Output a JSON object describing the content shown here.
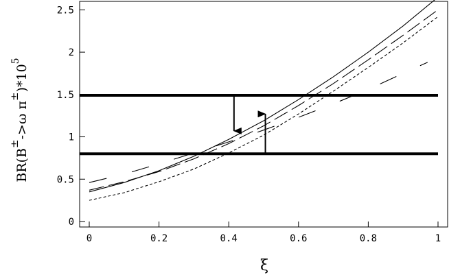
{
  "chart_data": {
    "type": "line",
    "title": "",
    "xlabel": "ξ",
    "ylabel": {
      "prefix": "BR(B",
      "pm1": "±",
      "middle": "->ω π",
      "pm2": "±",
      "suffix": ")*10",
      "exponent": "5"
    },
    "xlim": [
      0,
      1
    ],
    "ylim": [
      0,
      2.6
    ],
    "x_ticks": [
      0,
      0.2,
      0.4,
      0.6,
      0.8,
      1
    ],
    "x_tick_labels": [
      "0",
      "0.2",
      "0.4",
      "0.6",
      "0.8",
      "1"
    ],
    "y_ticks": [
      0,
      0.5,
      1,
      1.5,
      2,
      2.5
    ],
    "y_tick_labels": [
      "0",
      "0.5",
      "1",
      "1.5",
      "2",
      "2.5"
    ],
    "grid": false,
    "legend": "none",
    "series": [
      {
        "style": "solid",
        "x": [
          0,
          0.1,
          0.2,
          0.3,
          0.4,
          0.5,
          0.6,
          0.7,
          0.8,
          0.9,
          1.0
        ],
        "y": [
          0.35,
          0.46,
          0.6,
          0.77,
          0.97,
          1.19,
          1.44,
          1.71,
          2.0,
          2.31,
          2.65
        ]
      },
      {
        "style": "long-dash",
        "x": [
          0,
          0.1,
          0.2,
          0.3,
          0.4,
          0.5,
          0.6,
          0.7,
          0.8,
          0.9,
          1.0
        ],
        "y": [
          0.37,
          0.47,
          0.59,
          0.74,
          0.92,
          1.13,
          1.37,
          1.63,
          1.91,
          2.2,
          2.5
        ]
      },
      {
        "style": "short-dash",
        "x": [
          0,
          0.1,
          0.2,
          0.3,
          0.4,
          0.5,
          0.6,
          0.7,
          0.8,
          0.9,
          1.0
        ],
        "y": [
          0.25,
          0.34,
          0.47,
          0.62,
          0.81,
          1.02,
          1.27,
          1.54,
          1.82,
          2.11,
          2.42
        ]
      },
      {
        "style": "sparse-dash",
        "x": [
          0,
          0.1,
          0.2,
          0.3,
          0.4,
          0.5,
          0.6,
          0.7,
          0.8,
          0.9,
          0.97
        ],
        "y": [
          0.46,
          0.56,
          0.68,
          0.81,
          0.94,
          1.08,
          1.23,
          1.39,
          1.56,
          1.75,
          1.88
        ]
      }
    ],
    "bounds": [
      {
        "name": "upper",
        "y": 1.49
      },
      {
        "name": "lower",
        "y": 0.8
      }
    ],
    "arrows": [
      {
        "x": 0.415,
        "from_y": 1.49,
        "to_y": 1.07,
        "direction": "down"
      },
      {
        "x": 0.505,
        "from_y": 0.8,
        "to_y": 1.27,
        "direction": "up"
      }
    ]
  }
}
